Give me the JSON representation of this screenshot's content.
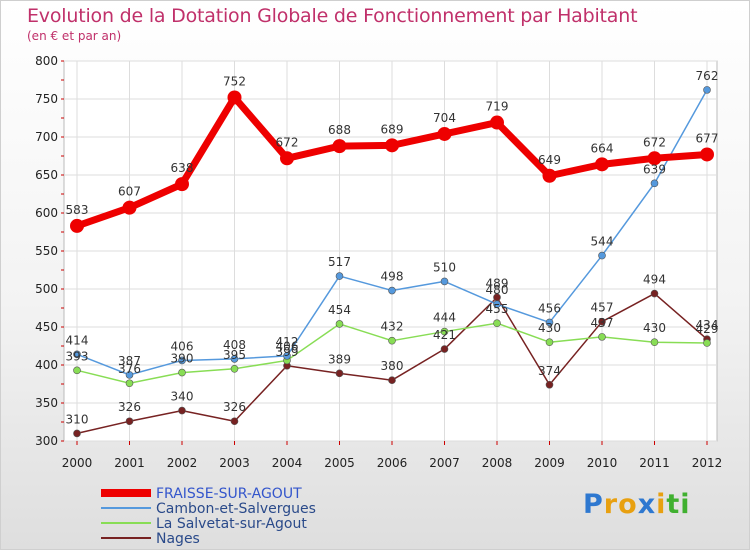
{
  "chart_data": {
    "type": "line",
    "title": "Evolution de la Dotation Globale de Fonctionnement par Habitant",
    "subtitle": "(en € et par an)",
    "xlabel": "",
    "ylabel": "",
    "categories": [
      "2000",
      "2001",
      "2002",
      "2003",
      "2004",
      "2005",
      "2006",
      "2007",
      "2008",
      "2009",
      "2010",
      "2011",
      "2012"
    ],
    "ylim": [
      300,
      800
    ],
    "yticks": [
      300,
      350,
      400,
      450,
      500,
      550,
      600,
      650,
      700,
      750,
      800
    ],
    "grid": true,
    "legend_position": "bottom-left",
    "series": [
      {
        "name": "FRAISSE-SUR-AGOUT",
        "color": "#ee0000",
        "values": [
          583,
          607,
          638,
          752,
          672,
          688,
          689,
          704,
          719,
          649,
          664,
          672,
          677
        ]
      },
      {
        "name": "Cambon-et-Salvergues",
        "color": "#5599dd",
        "values": [
          414,
          387,
          406,
          408,
          412,
          517,
          498,
          510,
          480,
          456,
          544,
          639,
          762
        ]
      },
      {
        "name": "La Salvetat-sur-Agout",
        "color": "#88dd55",
        "values": [
          393,
          376,
          390,
          395,
          406,
          454,
          432,
          444,
          455,
          430,
          437,
          430,
          429
        ]
      },
      {
        "name": "Nages",
        "color": "#772222",
        "values": [
          310,
          326,
          340,
          326,
          399,
          389,
          380,
          421,
          489,
          374,
          457,
          494,
          434
        ]
      }
    ]
  },
  "logo": {
    "letters": [
      "P",
      "r",
      "o",
      "x",
      "i",
      "t",
      "i"
    ],
    "colors": [
      "#2e78d0",
      "#e8a010",
      "#e8a010",
      "#2e78d0",
      "#e8a010",
      "#40b030",
      "#40b030"
    ]
  }
}
